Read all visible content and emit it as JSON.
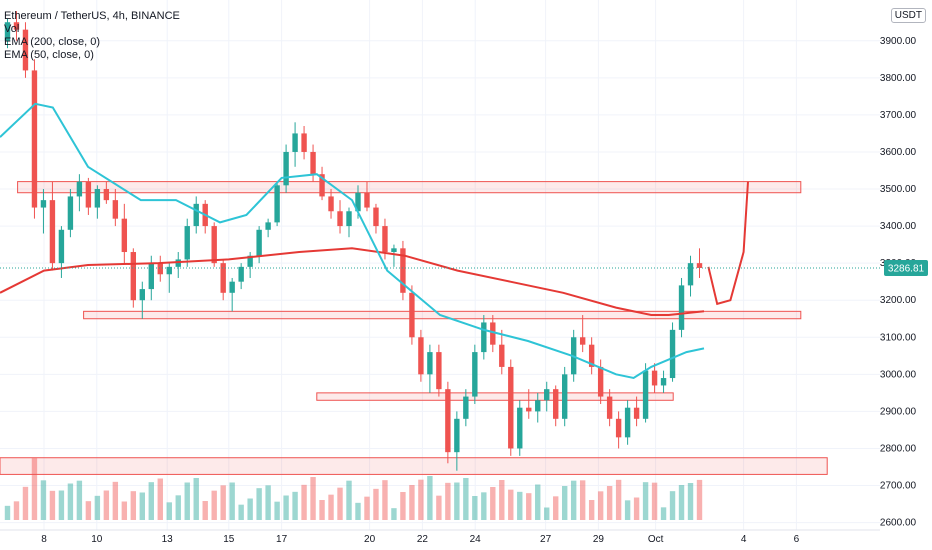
{
  "header": {
    "symbol": "Ethereum / TetherUS, 4h, BINANCE",
    "indicators": [
      "Vol",
      "EMA (200, close, 0)",
      "EMA (50, close, 0)"
    ]
  },
  "currency_button": "USDT",
  "last_price": "3286.81",
  "colors": {
    "up": "#26a69a",
    "down": "#ef5350",
    "ema50": "#2ec4d6",
    "ema200": "#e53935",
    "zone_fill": "rgba(239,83,80,0.12)",
    "zone_stroke": "#ef5350",
    "lastprice_bg": "#26a69a"
  },
  "chart_data": {
    "type": "candlestick",
    "title": "Ethereum / TetherUS, 4h, BINANCE",
    "y_axis": {
      "ticks": [
        2600,
        2700,
        2800,
        2900,
        3000,
        3100,
        3200,
        3300,
        3400,
        3500,
        3600,
        3700,
        3800,
        3900
      ],
      "tick_labels": [
        "2600.00",
        "2700.00",
        "2800.00",
        "2900.00",
        "3000.00",
        "3100.00",
        "3200.00",
        "3300.00",
        "3400.00",
        "3500.00",
        "3600.00",
        "3700.00",
        "3800.00",
        "3900.00"
      ],
      "ylim": [
        2580,
        4010
      ]
    },
    "x_axis": {
      "tick_labels": [
        "8",
        "10",
        "13",
        "15",
        "17",
        "20",
        "22",
        "24",
        "27",
        "29",
        "Oct",
        "4",
        "6"
      ],
      "tick_positions": [
        0.05,
        0.11,
        0.19,
        0.26,
        0.32,
        0.42,
        0.48,
        0.54,
        0.62,
        0.68,
        0.745,
        0.845,
        0.905
      ]
    },
    "grid": true,
    "candles": [
      [
        3900,
        3960,
        3880,
        3950
      ],
      [
        3950,
        3980,
        3900,
        3930
      ],
      [
        3930,
        3950,
        3800,
        3820
      ],
      [
        3820,
        3850,
        3420,
        3450
      ],
      [
        3450,
        3500,
        3380,
        3470
      ],
      [
        3470,
        3520,
        3280,
        3300
      ],
      [
        3300,
        3400,
        3260,
        3390
      ],
      [
        3390,
        3500,
        3370,
        3480
      ],
      [
        3480,
        3540,
        3440,
        3520
      ],
      [
        3520,
        3530,
        3430,
        3450
      ],
      [
        3450,
        3510,
        3420,
        3500
      ],
      [
        3500,
        3520,
        3460,
        3470
      ],
      [
        3470,
        3500,
        3400,
        3420
      ],
      [
        3420,
        3460,
        3300,
        3330
      ],
      [
        3330,
        3340,
        3180,
        3200
      ],
      [
        3200,
        3250,
        3150,
        3230
      ],
      [
        3230,
        3320,
        3200,
        3300
      ],
      [
        3300,
        3320,
        3250,
        3270
      ],
      [
        3270,
        3300,
        3220,
        3290
      ],
      [
        3290,
        3330,
        3260,
        3310
      ],
      [
        3310,
        3420,
        3290,
        3400
      ],
      [
        3400,
        3480,
        3380,
        3460
      ],
      [
        3460,
        3470,
        3380,
        3400
      ],
      [
        3400,
        3410,
        3290,
        3300
      ],
      [
        3300,
        3310,
        3200,
        3220
      ],
      [
        3220,
        3260,
        3170,
        3250
      ],
      [
        3250,
        3300,
        3230,
        3290
      ],
      [
        3290,
        3330,
        3260,
        3320
      ],
      [
        3320,
        3400,
        3300,
        3390
      ],
      [
        3390,
        3420,
        3370,
        3410
      ],
      [
        3410,
        3520,
        3400,
        3510
      ],
      [
        3510,
        3620,
        3490,
        3600
      ],
      [
        3600,
        3680,
        3560,
        3650
      ],
      [
        3650,
        3670,
        3580,
        3600
      ],
      [
        3600,
        3620,
        3520,
        3540
      ],
      [
        3540,
        3560,
        3470,
        3480
      ],
      [
        3480,
        3500,
        3420,
        3440
      ],
      [
        3440,
        3470,
        3380,
        3400
      ],
      [
        3400,
        3450,
        3370,
        3440
      ],
      [
        3440,
        3510,
        3420,
        3490
      ],
      [
        3490,
        3520,
        3440,
        3450
      ],
      [
        3450,
        3460,
        3380,
        3400
      ],
      [
        3400,
        3420,
        3310,
        3330
      ],
      [
        3330,
        3350,
        3290,
        3340
      ],
      [
        3340,
        3360,
        3200,
        3220
      ],
      [
        3220,
        3240,
        3080,
        3100
      ],
      [
        3100,
        3120,
        2980,
        3000
      ],
      [
        3000,
        3080,
        2950,
        3060
      ],
      [
        3060,
        3080,
        2940,
        2960
      ],
      [
        2960,
        2980,
        2760,
        2790
      ],
      [
        2790,
        2900,
        2740,
        2880
      ],
      [
        2880,
        2960,
        2860,
        2940
      ],
      [
        2940,
        3080,
        2920,
        3060
      ],
      [
        3060,
        3160,
        3040,
        3140
      ],
      [
        3140,
        3160,
        3060,
        3080
      ],
      [
        3080,
        3120,
        3000,
        3020
      ],
      [
        3020,
        3040,
        2780,
        2800
      ],
      [
        2800,
        2930,
        2780,
        2910
      ],
      [
        2910,
        2960,
        2880,
        2900
      ],
      [
        2900,
        2950,
        2870,
        2930
      ],
      [
        2930,
        2980,
        2900,
        2960
      ],
      [
        2960,
        2970,
        2860,
        2880
      ],
      [
        2880,
        3020,
        2860,
        3000
      ],
      [
        3000,
        3120,
        2980,
        3100
      ],
      [
        3100,
        3160,
        3060,
        3080
      ],
      [
        3080,
        3100,
        3000,
        3020
      ],
      [
        3020,
        3040,
        2920,
        2940
      ],
      [
        2940,
        2960,
        2860,
        2880
      ],
      [
        2880,
        2900,
        2800,
        2830
      ],
      [
        2830,
        2930,
        2810,
        2910
      ],
      [
        2910,
        2940,
        2860,
        2880
      ],
      [
        2880,
        3030,
        2870,
        3010
      ],
      [
        3010,
        3030,
        2950,
        2970
      ],
      [
        2970,
        3010,
        2950,
        2990
      ],
      [
        2990,
        3140,
        2980,
        3120
      ],
      [
        3120,
        3260,
        3100,
        3240
      ],
      [
        3240,
        3320,
        3210,
        3300
      ],
      [
        3300,
        3340,
        3260,
        3287
      ]
    ],
    "ema50": [
      [
        0,
        3640
      ],
      [
        0.04,
        3730
      ],
      [
        0.06,
        3720
      ],
      [
        0.1,
        3560
      ],
      [
        0.16,
        3470
      ],
      [
        0.2,
        3470
      ],
      [
        0.25,
        3410
      ],
      [
        0.28,
        3430
      ],
      [
        0.32,
        3530
      ],
      [
        0.36,
        3540
      ],
      [
        0.4,
        3470
      ],
      [
        0.44,
        3280
      ],
      [
        0.5,
        3160
      ],
      [
        0.55,
        3120
      ],
      [
        0.6,
        3090
      ],
      [
        0.65,
        3050
      ],
      [
        0.7,
        3000
      ],
      [
        0.72,
        2990
      ],
      [
        0.74,
        3020
      ],
      [
        0.78,
        3060
      ],
      [
        0.8,
        3070
      ]
    ],
    "ema200": [
      [
        0,
        3220
      ],
      [
        0.05,
        3280
      ],
      [
        0.1,
        3295
      ],
      [
        0.18,
        3300
      ],
      [
        0.26,
        3310
      ],
      [
        0.34,
        3330
      ],
      [
        0.4,
        3340
      ],
      [
        0.46,
        3320
      ],
      [
        0.52,
        3280
      ],
      [
        0.58,
        3250
      ],
      [
        0.64,
        3220
      ],
      [
        0.7,
        3180
      ],
      [
        0.74,
        3160
      ],
      [
        0.76,
        3160
      ],
      [
        0.8,
        3170
      ]
    ],
    "zones": [
      {
        "y1": 3490,
        "y2": 3520,
        "x1": 0.02,
        "x2": 0.91
      },
      {
        "y1": 3150,
        "y2": 3170,
        "x1": 0.095,
        "x2": 0.91
      },
      {
        "y1": 2930,
        "y2": 2950,
        "x1": 0.36,
        "x2": 0.765
      },
      {
        "y1": 2730,
        "y2": 2775,
        "x1": 0,
        "x2": 0.94
      }
    ],
    "projection": [
      [
        0.805,
        3290
      ],
      [
        0.815,
        3190
      ],
      [
        0.83,
        3200
      ],
      [
        0.845,
        3330
      ],
      [
        0.85,
        3520
      ]
    ],
    "last_price": 3286.81
  }
}
